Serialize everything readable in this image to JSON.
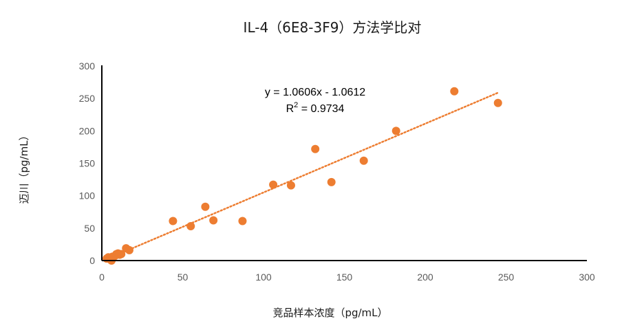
{
  "chart_data": {
    "type": "scatter",
    "title": "IL-4（6E8-3F9）方法学比对",
    "xlabel": "竞品样本浓度（pg/mL）",
    "ylabel": "迈川（pg/mL）",
    "xlim": [
      0,
      300
    ],
    "ylim": [
      0,
      300
    ],
    "xticks": [
      0,
      50,
      100,
      150,
      200,
      250,
      300
    ],
    "yticks": [
      0,
      50,
      100,
      150,
      200,
      250,
      300
    ],
    "grid": false,
    "legend": "none",
    "marker_color": "#ED7D31",
    "trendline_color": "#ED7D31",
    "points": [
      {
        "x": 3,
        "y": 3
      },
      {
        "x": 4,
        "y": 5
      },
      {
        "x": 5,
        "y": 2
      },
      {
        "x": 6,
        "y": 0
      },
      {
        "x": 6.5,
        "y": 6
      },
      {
        "x": 8,
        "y": 7
      },
      {
        "x": 9,
        "y": 10
      },
      {
        "x": 10,
        "y": 11
      },
      {
        "x": 11,
        "y": 9
      },
      {
        "x": 12,
        "y": 10
      },
      {
        "x": 15,
        "y": 19
      },
      {
        "x": 17,
        "y": 16
      },
      {
        "x": 44,
        "y": 61
      },
      {
        "x": 55,
        "y": 53
      },
      {
        "x": 64,
        "y": 83
      },
      {
        "x": 69,
        "y": 62
      },
      {
        "x": 87,
        "y": 61
      },
      {
        "x": 106,
        "y": 117
      },
      {
        "x": 117,
        "y": 116
      },
      {
        "x": 132,
        "y": 172
      },
      {
        "x": 142,
        "y": 121
      },
      {
        "x": 162,
        "y": 154
      },
      {
        "x": 182,
        "y": 200
      },
      {
        "x": 218,
        "y": 261
      },
      {
        "x": 245,
        "y": 243
      }
    ],
    "trendline": {
      "type": "linear",
      "slope": 1.0606,
      "intercept": -1.0612,
      "x_range": [
        5,
        245
      ],
      "equation_label": "y = 1.0606x - 1.0612",
      "r2_prefix": "R",
      "r2_sup": "2",
      "r2_value": " = 0.9734"
    }
  }
}
